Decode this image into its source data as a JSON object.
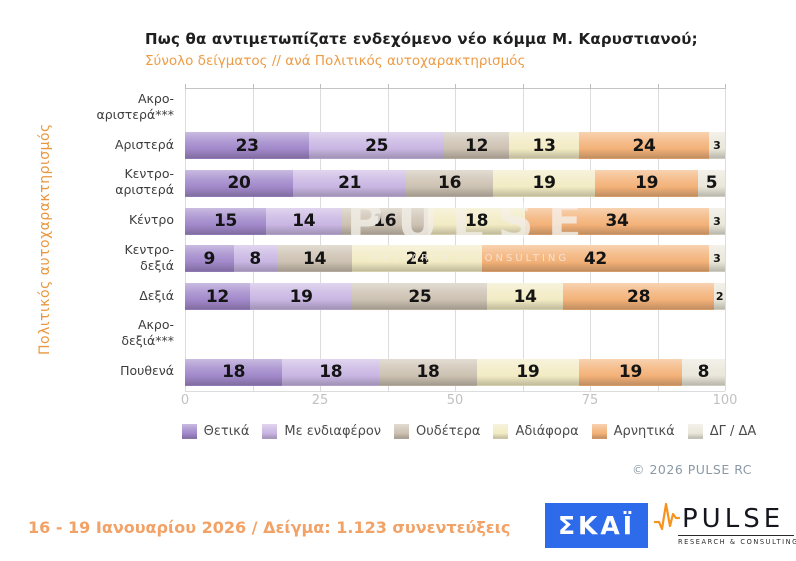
{
  "header": {
    "title": "Πως θα αντιμετωπίζατε ενδεχόμενο νέο κόμμα Μ. Καρυστιανού;",
    "subtitle": "Σύνολο δείγματος // ανά Πολιτικός αυτοχαρακτηρισμός"
  },
  "chart_data": {
    "type": "bar",
    "orientation": "horizontal",
    "stacked": true,
    "grid": true,
    "legend_position": "bottom",
    "ylabel": "Πολιτικός αυτοχαρακτηρισμός",
    "xlim": [
      0,
      100
    ],
    "x_ticks": [
      0,
      25,
      50,
      75,
      100
    ],
    "gridline_interval": 12.5,
    "categories": [
      "Ακρο-αριστερά***",
      "Αριστερά",
      "Κεντρο-αριστερά",
      "Κέντρο",
      "Κεντρο-δεξιά",
      "Δεξιά",
      "Ακρο-δεξιά***",
      "Πουθενά"
    ],
    "series": [
      {
        "name": "Θετικά",
        "color": "#a289cb",
        "values": [
          null,
          23,
          20,
          15,
          9,
          12,
          null,
          18
        ]
      },
      {
        "name": "Με ενδιαφέρον",
        "color": "#c9b6e3",
        "values": [
          null,
          25,
          21,
          14,
          8,
          19,
          null,
          18
        ]
      },
      {
        "name": "Ουδέτερα",
        "color": "#cdc2b2",
        "values": [
          null,
          12,
          16,
          16,
          14,
          25,
          null,
          18
        ]
      },
      {
        "name": "Αδιάφορα",
        "color": "#f2ebc4",
        "values": [
          null,
          13,
          19,
          18,
          24,
          14,
          null,
          19
        ]
      },
      {
        "name": "Αρνητικά",
        "color": "#f3b279",
        "values": [
          null,
          24,
          19,
          34,
          42,
          28,
          null,
          19
        ]
      },
      {
        "name": "ΔΓ / ΔΑ",
        "color": "#eae7da",
        "values": [
          null,
          3,
          5,
          3,
          3,
          2,
          null,
          8
        ]
      }
    ]
  },
  "watermark": {
    "line1": "PULSE",
    "line2": "RESEARCH + CONSULTING"
  },
  "copyright": "©  2026  PULSE RC",
  "footer": {
    "note": "16 - 19 Ιανουαρίου 2026  /  Δείγμα:  1.123 συνεντεύξεις",
    "skai_logo_text": "ΣΚΑΪ",
    "pulse_logo_text": "PULSE",
    "pulse_logo_subtext": "RESEARCH & CONSULTING"
  }
}
